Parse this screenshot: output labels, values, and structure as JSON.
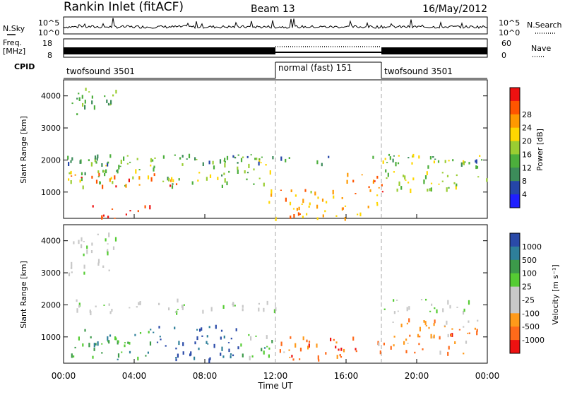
{
  "header": {
    "title": "Rankin Inlet (fitACF)",
    "beam": "Beam 13",
    "date": "16/May/2012"
  },
  "noise_panel": {
    "left_label": "N.Sky",
    "right_label": "N.Search",
    "ticks": [
      "10^5",
      "10^0"
    ]
  },
  "freq_panel": {
    "left_label_line1": "Freq.",
    "left_label_line2": "[MHz]",
    "left_ticks": [
      "18",
      "8"
    ],
    "right_label": "Nave",
    "right_ticks": [
      "60",
      "0"
    ]
  },
  "cpid_panel": {
    "label": "CPID",
    "segments": [
      {
        "name": "twofsound 3501",
        "start_hour": 0,
        "end_hour": 12
      },
      {
        "name": "normal (fast) 151",
        "start_hour": 12,
        "end_hour": 18
      },
      {
        "name": "twofsound 3501",
        "start_hour": 18,
        "end_hour": 24
      }
    ]
  },
  "colors": {
    "power_scale": [
      "#1f1fff",
      "#2546a8",
      "#3c8c5a",
      "#4caf3c",
      "#9acd32",
      "#ffd700",
      "#ff9900",
      "#ff5500",
      "#ee1111"
    ],
    "velocity_scale": [
      "#2a4aa8",
      "#2e7f9a",
      "#3c9a4a",
      "#55cc33",
      "#c8c8c8",
      "#c8c8c8",
      "#ff9a1a",
      "#ff6a1a",
      "#ee1111"
    ]
  },
  "chart_data": [
    {
      "type": "heatmap",
      "name": "power",
      "ylabel": "Slant Range [km]",
      "ylim": [
        180,
        4500
      ],
      "xlim_hours": [
        0,
        24
      ],
      "y_ticks": [
        1000,
        2000,
        3000,
        4000
      ],
      "colorbar": {
        "label": "Power [dB]",
        "ticks": [
          4,
          8,
          12,
          16,
          20,
          24,
          28
        ],
        "range": [
          0,
          32
        ]
      },
      "bands": [
        {
          "x0": 0.2,
          "x1": 11.8,
          "y0": 1200,
          "y1": 2200,
          "level": 0.45
        },
        {
          "x0": 0.3,
          "x1": 6.5,
          "y0": 1200,
          "y1": 1600,
          "level": 0.8
        },
        {
          "x0": 1.5,
          "x1": 5.0,
          "y0": 200,
          "y1": 600,
          "level": 0.95
        },
        {
          "x0": 11.6,
          "x1": 17.8,
          "y0": 200,
          "y1": 1100,
          "level": 0.7
        },
        {
          "x0": 16.0,
          "x1": 18.5,
          "y0": 1000,
          "y1": 1600,
          "level": 0.85
        },
        {
          "x0": 0.2,
          "x1": 24.0,
          "y0": 1900,
          "y1": 2150,
          "level": 0.3
        },
        {
          "x0": 18.0,
          "x1": 24.0,
          "y0": 1100,
          "y1": 2200,
          "level": 0.5
        },
        {
          "x0": 0.2,
          "x1": 3.0,
          "y0": 3400,
          "y1": 4300,
          "level": 0.4
        }
      ]
    },
    {
      "type": "heatmap",
      "name": "velocity",
      "xlabel": "Time UT",
      "ylabel": "Slant Range [km]",
      "ylim": [
        180,
        4500
      ],
      "xlim_hours": [
        0,
        24
      ],
      "x_ticks": [
        "00:00",
        "04:00",
        "08:00",
        "12:00",
        "16:00",
        "20:00",
        "00:00"
      ],
      "y_ticks": [
        1000,
        2000,
        3000,
        4000
      ],
      "colorbar": {
        "label": "Velocity [m s⁻¹]",
        "ticks": [
          1000,
          500,
          100,
          25,
          -25,
          -100,
          -500,
          -1000
        ]
      },
      "bands": [
        {
          "x0": 0.2,
          "x1": 12.0,
          "y0": 1800,
          "y1": 2200,
          "level": 0.5
        },
        {
          "x0": 0.3,
          "x1": 5.0,
          "y0": 300,
          "y1": 1300,
          "level": 0.3
        },
        {
          "x0": 5.0,
          "x1": 10.0,
          "y0": 300,
          "y1": 1400,
          "level": 0.05
        },
        {
          "x0": 10.0,
          "x1": 12.0,
          "y0": 400,
          "y1": 1300,
          "level": 0.35
        },
        {
          "x0": 12.0,
          "x1": 17.0,
          "y0": 300,
          "y1": 1100,
          "level": 0.8
        },
        {
          "x0": 17.5,
          "x1": 23.5,
          "y0": 500,
          "y1": 1600,
          "level": 0.75
        },
        {
          "x0": 18.0,
          "x1": 24.0,
          "y0": 1800,
          "y1": 2200,
          "level": 0.5
        },
        {
          "x0": 0.2,
          "x1": 3.0,
          "y0": 3000,
          "y1": 4300,
          "level": 0.5
        }
      ]
    }
  ]
}
